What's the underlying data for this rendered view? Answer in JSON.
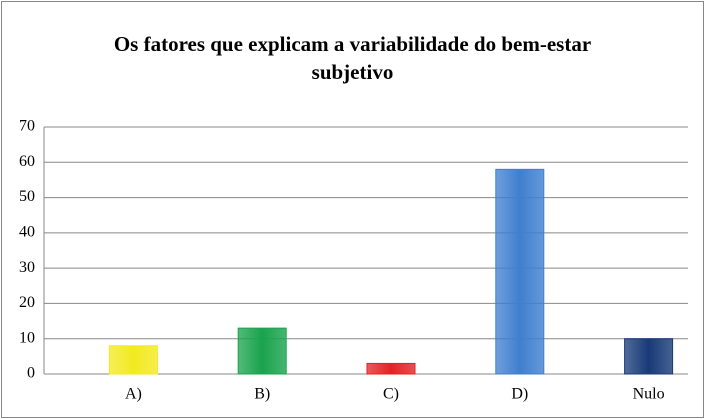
{
  "chart_data": {
    "type": "bar",
    "title": "Os fatores que explicam a variabilidade do bem-estar subjetivo",
    "categories": [
      "A)",
      "B)",
      "C)",
      "D)",
      "Nulo"
    ],
    "values": [
      8,
      13,
      3,
      58,
      10
    ],
    "colors": [
      "#f2ea1f",
      "#19a34c",
      "#e52222",
      "#3f7fcf",
      "#183a78"
    ],
    "ylim": [
      0,
      70
    ],
    "yticks": [
      0,
      10,
      20,
      30,
      40,
      50,
      60,
      70
    ],
    "grid": true
  }
}
